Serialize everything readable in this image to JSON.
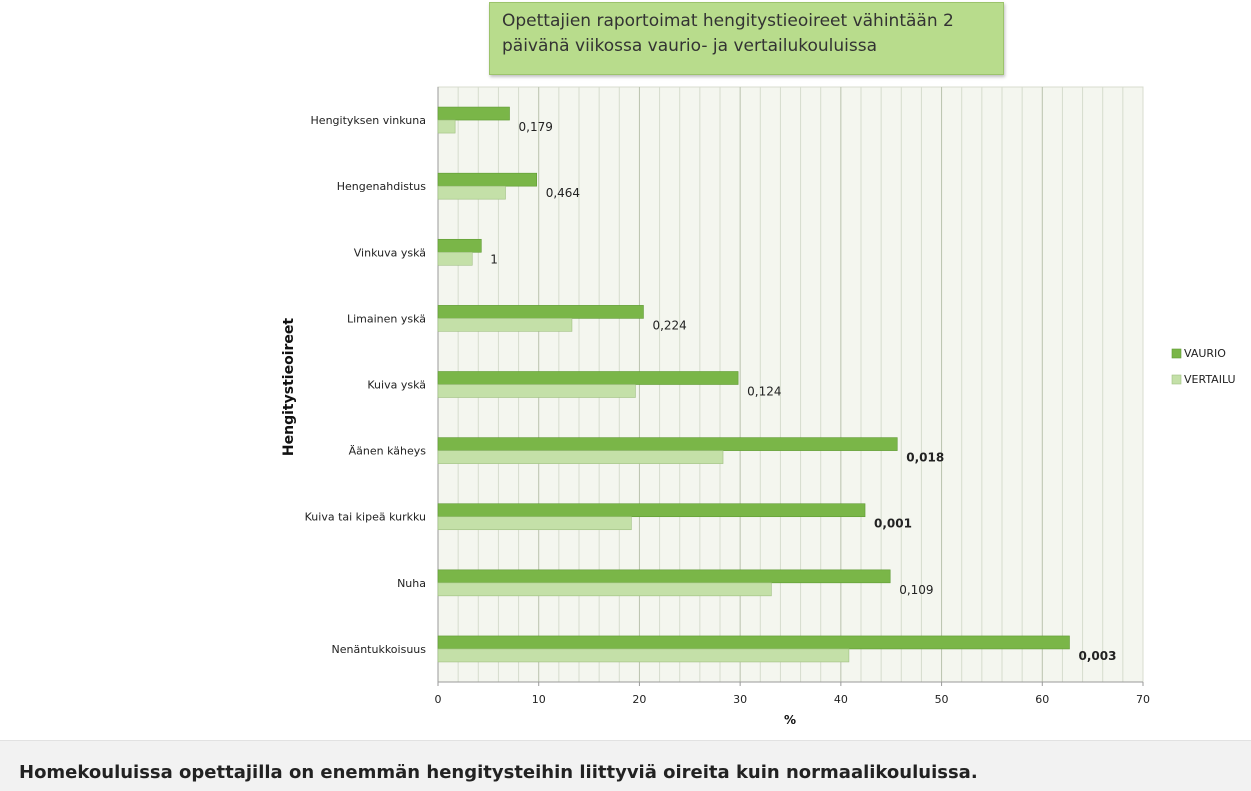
{
  "chart_data": {
    "type": "bar",
    "orientation": "horizontal",
    "title": "Opettajien raportoimat hengitystieoireet vähintään 2 päivänä viikossa vaurio- ja vertailukouluissa",
    "title_lines": [
      "Opettajien raportoimat hengitystieoireet vähintään 2",
      "päivänä viikossa vaurio- ja vertailukouluissa"
    ],
    "ylabel": "Hengitystieoireet",
    "xlabel": "%",
    "xlim": [
      0,
      70
    ],
    "x_ticks": [
      0,
      10,
      20,
      30,
      40,
      50,
      60,
      70
    ],
    "grid": "vertical",
    "legend_position": "right",
    "categories": [
      "Hengityksen vinkuna",
      "Hengenahdistus",
      "Vinkuva yskä",
      "Limainen yskä",
      "Kuiva yskä",
      "Äänen käheys",
      "Kuiva tai kipeä kurkku",
      "Nuha",
      "Nenäntukkoisuus"
    ],
    "series": [
      {
        "name": "VAURIO",
        "color": "#7ab648",
        "values": [
          7.1,
          9.8,
          4.3,
          20.4,
          29.8,
          45.6,
          42.4,
          44.9,
          62.7
        ]
      },
      {
        "name": "VERTAILU",
        "color": "#c4e0a8",
        "values": [
          1.7,
          6.7,
          3.4,
          13.3,
          19.6,
          28.3,
          19.2,
          33.1,
          40.8
        ]
      }
    ],
    "p_values": [
      "0,179",
      "0,464",
      "1",
      "0,224",
      "0,124",
      "0,018",
      "0,001",
      "0,109",
      "0,003"
    ],
    "p_values_bold": [
      false,
      false,
      false,
      false,
      false,
      true,
      true,
      false,
      true
    ]
  },
  "caption": "Homekouluissa opettajilla on enemmän hengitysteihin liittyviä oireita kuin normaalikouluissa."
}
